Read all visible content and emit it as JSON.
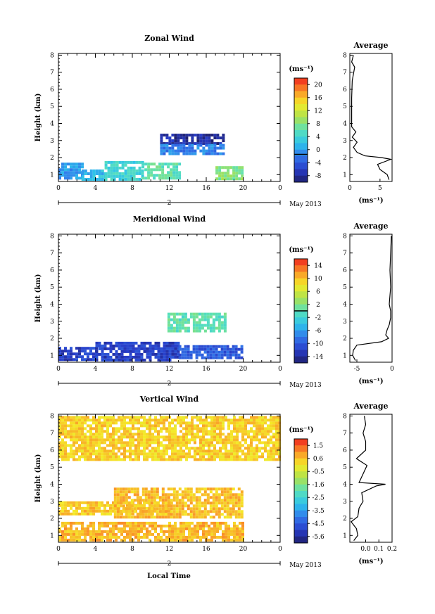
{
  "figure": {
    "xlabel_bottom": "Local Time",
    "date_label": "May 2013",
    "avg_unit_label": "(ms⁻¹)"
  },
  "chart_data": [
    {
      "type": "heatmap",
      "title": "Zonal Wind",
      "ylabel": "Height (km)",
      "xlabel": "Local Time",
      "x_ticks": [
        "0",
        "4",
        "8",
        "12",
        "16",
        "20",
        "0"
      ],
      "x_range": [
        0,
        24
      ],
      "day_tick": "2",
      "date_label": "May 2013",
      "y_ticks": [
        "1",
        "2",
        "3",
        "4",
        "5",
        "6",
        "7",
        "8"
      ],
      "y_range": [
        0.6,
        8.1
      ],
      "colorbar": {
        "unit": "(ms⁻¹)",
        "min": -8,
        "max": 22,
        "tick_labels": [
          "20",
          "16",
          "12",
          "8",
          "4",
          "0",
          "-4",
          "-8"
        ],
        "marked_value": 0
      },
      "regions": [
        {
          "x": [
            0,
            2.5
          ],
          "y": [
            0.8,
            1.7
          ],
          "value": 1
        },
        {
          "x": [
            2.5,
            5
          ],
          "y": [
            0.8,
            1.3
          ],
          "value": 3
        },
        {
          "x": [
            5,
            9
          ],
          "y": [
            0.8,
            1.8
          ],
          "value": 5
        },
        {
          "x": [
            9,
            13
          ],
          "y": [
            0.8,
            1.7
          ],
          "value": 7
        },
        {
          "x": [
            17,
            20
          ],
          "y": [
            0.8,
            1.5
          ],
          "value": 9
        },
        {
          "x": [
            11,
            18
          ],
          "y": [
            2.8,
            3.4
          ],
          "value": -6
        },
        {
          "x": [
            11,
            18
          ],
          "y": [
            2.3,
            2.8
          ],
          "value": 0
        }
      ],
      "average_profile": {
        "title": "Average",
        "xlabel": "(ms⁻¹)",
        "x_ticks": [
          "0",
          "5"
        ],
        "x_range": [
          0,
          7
        ],
        "height": [
          0.7,
          1.0,
          1.3,
          1.6,
          1.9,
          2.0,
          2.1,
          2.3,
          2.6,
          2.9,
          3.2,
          3.5,
          3.8,
          4.5,
          5.5,
          6.5,
          7.3,
          7.6,
          8.0
        ],
        "value": [
          6.5,
          6.2,
          5.0,
          4.6,
          6.8,
          5.2,
          2.5,
          1.2,
          0.6,
          1.2,
          0.4,
          1.0,
          0.3,
          0.3,
          0.3,
          0.4,
          0.8,
          0.3,
          0.6
        ]
      }
    },
    {
      "type": "heatmap",
      "title": "Meridional Wind",
      "ylabel": "Height (km)",
      "xlabel": "Local Time",
      "x_ticks": [
        "0",
        "4",
        "8",
        "12",
        "16",
        "20",
        "0"
      ],
      "x_range": [
        0,
        24
      ],
      "day_tick": "2",
      "date_label": "May 2013",
      "y_ticks": [
        "1",
        "2",
        "3",
        "4",
        "5",
        "6",
        "7",
        "8"
      ],
      "y_range": [
        0.6,
        8.1
      ],
      "colorbar": {
        "unit": "(ms⁻¹)",
        "min": -16,
        "max": 16,
        "tick_labels": [
          "14",
          "10",
          "6",
          "2",
          "-2",
          "-6",
          "-10",
          "-14"
        ],
        "marked_value": 0
      },
      "regions": [
        {
          "x": [
            0,
            4
          ],
          "y": [
            0.8,
            1.5
          ],
          "value": -12
        },
        {
          "x": [
            4,
            13
          ],
          "y": [
            0.8,
            1.8
          ],
          "value": -12
        },
        {
          "x": [
            13,
            20
          ],
          "y": [
            0.8,
            1.6
          ],
          "value": -10
        },
        {
          "x": [
            11.8,
            18
          ],
          "y": [
            2.4,
            3.5
          ],
          "value": 0
        }
      ],
      "average_profile": {
        "title": "Average",
        "xlabel": "(ms⁻¹)",
        "x_ticks": [
          "-5",
          "0"
        ],
        "x_range": [
          -6,
          0
        ],
        "height": [
          0.7,
          1.0,
          1.3,
          1.6,
          1.8,
          2.0,
          2.2,
          2.5,
          2.8,
          3.2,
          3.6,
          4.0,
          5.0,
          6.0,
          7.0,
          8.0
        ],
        "value": [
          -5.2,
          -5.6,
          -5.5,
          -5.0,
          -1.5,
          -0.5,
          -0.9,
          -0.7,
          -0.4,
          -0.2,
          -0.2,
          -0.4,
          -0.2,
          -0.3,
          -0.2,
          -0.1
        ]
      }
    },
    {
      "type": "heatmap",
      "title": "Vertical Wind",
      "ylabel": "Height (km)",
      "xlabel": "Local Time",
      "x_ticks": [
        "0",
        "4",
        "8",
        "12",
        "16",
        "20",
        "0"
      ],
      "x_range": [
        0,
        24
      ],
      "day_tick": "2",
      "date_label": "May 2013",
      "y_ticks": [
        "1",
        "2",
        "3",
        "4",
        "5",
        "6",
        "7",
        "8"
      ],
      "y_range": [
        0.6,
        8.1
      ],
      "colorbar": {
        "unit": "(ms⁻¹)",
        "min": -6.0,
        "max": 2.0,
        "tick_labels": [
          "1.5",
          "0.6",
          "-0.5",
          "-1.6",
          "-2.5",
          "-3.5",
          "-4.5",
          "-5.6"
        ],
        "marked_value": null
      },
      "regions": [
        {
          "x": [
            0,
            20
          ],
          "y": [
            0.8,
            1.8
          ],
          "value": 0.6
        },
        {
          "x": [
            0,
            12
          ],
          "y": [
            2.3,
            3.0
          ],
          "value": 0.4
        },
        {
          "x": [
            6,
            20
          ],
          "y": [
            2.0,
            3.8
          ],
          "value": 0.5
        },
        {
          "x": [
            0,
            24
          ],
          "y": [
            5.5,
            8.0
          ],
          "value": 0.3
        }
      ],
      "average_profile": {
        "title": "Average",
        "xlabel": "(ms⁻¹)",
        "x_ticks": [
          "0.0",
          "0.1",
          "0.2"
        ],
        "x_range": [
          -0.12,
          0.2
        ],
        "height": [
          0.7,
          1.0,
          1.4,
          1.8,
          2.1,
          2.6,
          3.0,
          3.5,
          3.9,
          4.0,
          4.1,
          4.6,
          5.1,
          5.5,
          6.0,
          6.5,
          7.0,
          7.5,
          8.0
        ],
        "value": [
          -0.09,
          -0.06,
          -0.07,
          -0.11,
          -0.06,
          -0.05,
          -0.02,
          -0.03,
          0.08,
          0.15,
          -0.05,
          -0.02,
          0.01,
          -0.07,
          0.0,
          0.0,
          -0.02,
          0.0,
          -0.01
        ]
      }
    }
  ]
}
